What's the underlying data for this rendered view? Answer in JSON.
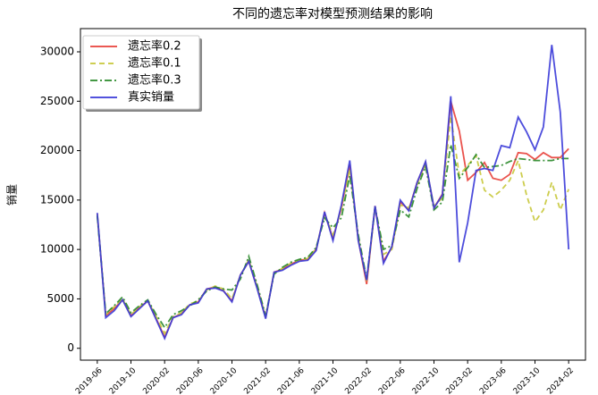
{
  "chart_data": {
    "type": "line",
    "title": "不同的遗忘率对模型预测结果的影响",
    "ylabel": "销量",
    "x": [
      "2019-06",
      "2019-07",
      "2019-08",
      "2019-09",
      "2019-10",
      "2019-11",
      "2019-12",
      "2020-01",
      "2020-02",
      "2020-03",
      "2020-04",
      "2020-05",
      "2020-06",
      "2020-07",
      "2020-08",
      "2020-09",
      "2020-10",
      "2020-11",
      "2020-12",
      "2021-01",
      "2021-02",
      "2021-03",
      "2021-04",
      "2021-05",
      "2021-06",
      "2021-07",
      "2021-08",
      "2021-09",
      "2021-10",
      "2021-11",
      "2021-12",
      "2022-01",
      "2022-02",
      "2022-03",
      "2022-04",
      "2022-05",
      "2022-06",
      "2022-07",
      "2022-08",
      "2022-09",
      "2022-10",
      "2022-11",
      "2022-12",
      "2023-01",
      "2023-02",
      "2023-03",
      "2023-04",
      "2023-05",
      "2023-06",
      "2023-07",
      "2023-08",
      "2023-09",
      "2023-10",
      "2023-11",
      "2023-12",
      "2024-01",
      "2024-02"
    ],
    "series": [
      {
        "name": "遗忘率0.2",
        "color": "#e8403a",
        "dash": "solid",
        "values": [
          13600,
          3300,
          4000,
          4900,
          3300,
          4100,
          4800,
          3000,
          1100,
          3100,
          3500,
          4400,
          4700,
          6000,
          6200,
          5800,
          4800,
          7400,
          8800,
          6100,
          3100,
          7700,
          8000,
          8500,
          8900,
          9000,
          10000,
          13700,
          11100,
          14200,
          18600,
          11000,
          6500,
          14400,
          8800,
          10200,
          14800,
          14000,
          16800,
          18800,
          14200,
          15600,
          25000,
          22000,
          17000,
          17800,
          18800,
          17200,
          17000,
          17600,
          19800,
          19700,
          19100,
          19800,
          19300,
          19300,
          20200
        ]
      },
      {
        "name": "遗忘率0.1",
        "color": "#c8c83a",
        "dash": "dashed",
        "values": [
          13500,
          3400,
          4200,
          5000,
          3400,
          4200,
          4800,
          3200,
          1500,
          3200,
          3600,
          4500,
          4800,
          5900,
          6300,
          6000,
          5000,
          7300,
          9000,
          6200,
          3200,
          7600,
          8100,
          8600,
          8900,
          9100,
          10100,
          13500,
          11500,
          14000,
          18200,
          11200,
          6800,
          14200,
          9500,
          10000,
          14500,
          14200,
          16500,
          18600,
          14400,
          15200,
          23500,
          17500,
          18500,
          19500,
          16000,
          15300,
          16000,
          17000,
          19000,
          15500,
          12800,
          14000,
          16800,
          14000,
          16100
        ]
      },
      {
        "name": "遗忘率0.3",
        "color": "#2a8a2a",
        "dash": "dashdot",
        "values": [
          13400,
          3500,
          4300,
          5200,
          3600,
          4300,
          4900,
          3400,
          2100,
          3400,
          3800,
          4300,
          4900,
          5800,
          6200,
          6000,
          5900,
          7000,
          9300,
          6400,
          3300,
          7500,
          8200,
          8700,
          9000,
          9200,
          10200,
          13200,
          12200,
          13200,
          17500,
          11500,
          7000,
          14300,
          10000,
          10400,
          14000,
          13300,
          16200,
          18400,
          14000,
          14800,
          20600,
          17200,
          18300,
          19600,
          18300,
          18400,
          18500,
          18900,
          19200,
          19100,
          19000,
          19000,
          19000,
          19200,
          19200
        ]
      },
      {
        "name": "真实销量",
        "color": "#3a3ad8",
        "dash": "solid",
        "values": [
          13700,
          3100,
          3800,
          4900,
          3200,
          4000,
          4800,
          2900,
          1000,
          3100,
          3400,
          4400,
          4600,
          6000,
          6100,
          5800,
          4700,
          7400,
          8800,
          6000,
          3000,
          7700,
          7900,
          8400,
          8800,
          8900,
          9900,
          13800,
          10900,
          14500,
          19000,
          10900,
          6900,
          14400,
          8600,
          10300,
          15000,
          13900,
          16800,
          18900,
          14200,
          15500,
          25500,
          8700,
          12700,
          18000,
          18200,
          18000,
          20500,
          20300,
          23400,
          21900,
          20100,
          22400,
          30700,
          23900,
          10000
        ]
      }
    ],
    "xlim": [
      "2019-04",
      "2024-04"
    ],
    "xticks": [
      "2019-06",
      "2019-10",
      "2020-02",
      "2020-06",
      "2020-10",
      "2021-02",
      "2021-06",
      "2021-10",
      "2022-02",
      "2022-06",
      "2022-10",
      "2023-02",
      "2023-06",
      "2023-10",
      "2024-02"
    ],
    "ylim": [
      -1200,
      32350
    ],
    "yticks": [
      0,
      5000,
      10000,
      15000,
      20000,
      25000,
      30000
    ],
    "legend": "upper left"
  }
}
